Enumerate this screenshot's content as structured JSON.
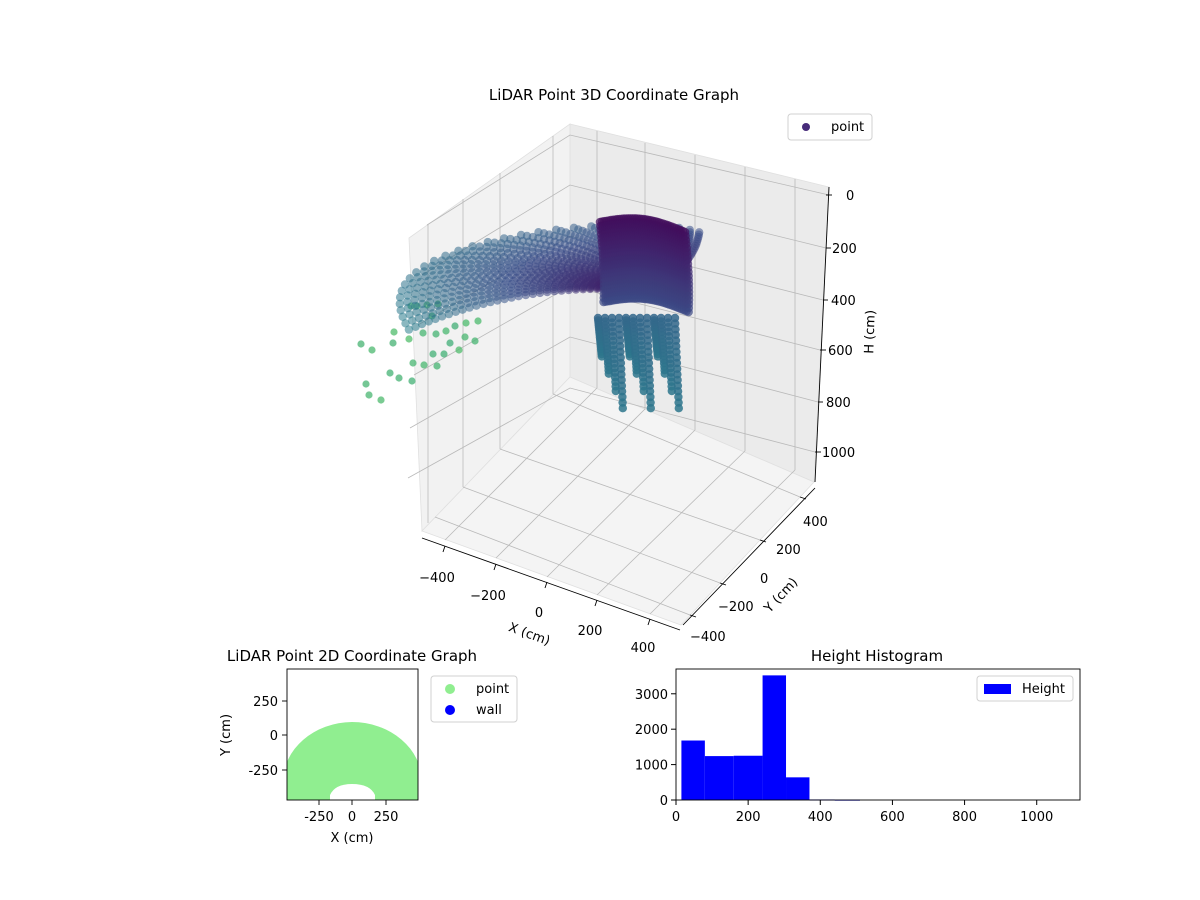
{
  "chart_data": [
    {
      "type": "scatter",
      "projection": "3d",
      "title": "LiDAR Point 3D Coordinate Graph",
      "xlabel": "X (cm)",
      "ylabel": "Y (cm)",
      "zlabel": "H (cm)",
      "x_ticks": [
        "−400",
        "−200",
        "0",
        "200",
        "400"
      ],
      "y_ticks": [
        "400",
        "200",
        "0",
        "−200",
        "−400"
      ],
      "z_ticks": [
        "0",
        "200",
        "400",
        "600",
        "800",
        "1000"
      ],
      "xlim": [
        -480,
        480
      ],
      "ylim": [
        -480,
        480
      ],
      "zlim": [
        0,
        1100
      ],
      "z_inverted": true,
      "grid": true,
      "legend": {
        "position": "top-right",
        "entries": [
          {
            "label": "point",
            "color": "#472c7a"
          }
        ]
      },
      "colormap": "viridis",
      "series": [
        {
          "name": "point",
          "description_points": [
            {
              "x": 0,
              "y": -100,
              "z": 80
            },
            {
              "x": 150,
              "y": -150,
              "z": 150
            },
            {
              "x": 250,
              "y": -300,
              "z": 250
            },
            {
              "x": -150,
              "y": -100,
              "z": 150
            },
            {
              "x": -350,
              "y": 50,
              "z": 350
            },
            {
              "x": -450,
              "y": 200,
              "z": 550
            },
            {
              "x": 200,
              "y": -400,
              "z": 700
            },
            {
              "x": 100,
              "y": -450,
              "z": 800
            }
          ]
        }
      ]
    },
    {
      "type": "scatter",
      "title": "LiDAR Point 2D Coordinate Graph",
      "xlabel": "X (cm)",
      "ylabel": "Y (cm)",
      "x_ticks": [
        -250,
        0,
        250
      ],
      "y_ticks": [
        250,
        0,
        -250
      ],
      "xlim": [
        -480,
        480
      ],
      "ylim": [
        -480,
        480
      ],
      "legend": {
        "position": "outside-right",
        "entries": [
          {
            "label": "point",
            "color": "#90ee90"
          },
          {
            "label": "wall",
            "color": "#0000ff"
          }
        ]
      },
      "series": [
        {
          "name": "point",
          "color": "#90ee90",
          "shape": "half-annulus",
          "outer_radius": 480,
          "inner_radius": 150,
          "center": [
            0,
            -380
          ]
        },
        {
          "name": "wall",
          "color": "#0000ff",
          "values": []
        }
      ]
    },
    {
      "type": "bar",
      "histogram": true,
      "title": "Height Histogram",
      "xlim": [
        0,
        1120
      ],
      "ylim": [
        0,
        3700
      ],
      "x_ticks": [
        0,
        200,
        400,
        600,
        800,
        1000
      ],
      "y_ticks": [
        0,
        1000,
        2000,
        3000
      ],
      "color": "#0000ff",
      "legend": {
        "position": "top-right",
        "entries": [
          {
            "label": "Height",
            "color": "#0000ff"
          }
        ]
      },
      "series": [
        {
          "name": "Height",
          "bins": [
            {
              "start": 15,
              "end": 80,
              "count": 1680
            },
            {
              "start": 80,
              "end": 160,
              "count": 1240
            },
            {
              "start": 160,
              "end": 240,
              "count": 1250
            },
            {
              "start": 240,
              "end": 305,
              "count": 3520
            },
            {
              "start": 305,
              "end": 370,
              "count": 640
            },
            {
              "start": 370,
              "end": 440,
              "count": 15
            },
            {
              "start": 440,
              "end": 510,
              "count": 10
            },
            {
              "start": 510,
              "end": 1080,
              "count": 0
            }
          ]
        }
      ]
    }
  ]
}
